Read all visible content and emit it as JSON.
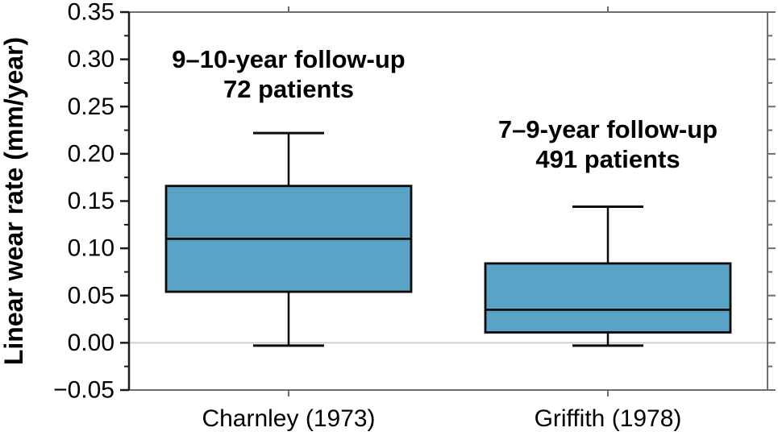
{
  "chart_data": {
    "type": "box",
    "title": "",
    "ylabel": "Linear wear rate (mm/year)",
    "xlabel": "",
    "ylim": [
      -0.05,
      0.35
    ],
    "yticks": [
      0.35,
      0.3,
      0.25,
      0.2,
      0.15,
      0.1,
      0.05,
      0.0,
      -0.05
    ],
    "ytick_labels": [
      "0.35",
      "0.30",
      "0.25",
      "0.20",
      "0.15",
      "0.10",
      "0.05",
      "0.00",
      "−0.05"
    ],
    "yminor_step": 0.025,
    "zero_line": 0.0,
    "grid": false,
    "legend": "none",
    "categories": [
      "Charnley (1973)",
      "Griffith (1978)"
    ],
    "series": [
      {
        "name": "Charnley (1973)",
        "annotation_lines": [
          "9–10-year follow-up",
          "72 patients"
        ],
        "annotation_y": 0.3,
        "whisker_low": -0.003,
        "q1": 0.054,
        "median": 0.11,
        "q3": 0.166,
        "whisker_high": 0.222
      },
      {
        "name": "Griffith (1978)",
        "annotation_lines": [
          "7–9-year follow-up",
          "491 patients"
        ],
        "annotation_y": 0.226,
        "whisker_low": -0.003,
        "q1": 0.011,
        "median": 0.035,
        "q3": 0.084,
        "whisker_high": 0.144
      }
    ],
    "colors": {
      "box_fill": "#58A3C6",
      "box_stroke": "#0a0a0a",
      "median": "#0a0a0a",
      "whisker": "#0a0a0a",
      "left_axis": "#1a1a1a",
      "frame": "#6e6e6e",
      "zero_line": "#d0d0d0",
      "text": "#000000"
    }
  }
}
